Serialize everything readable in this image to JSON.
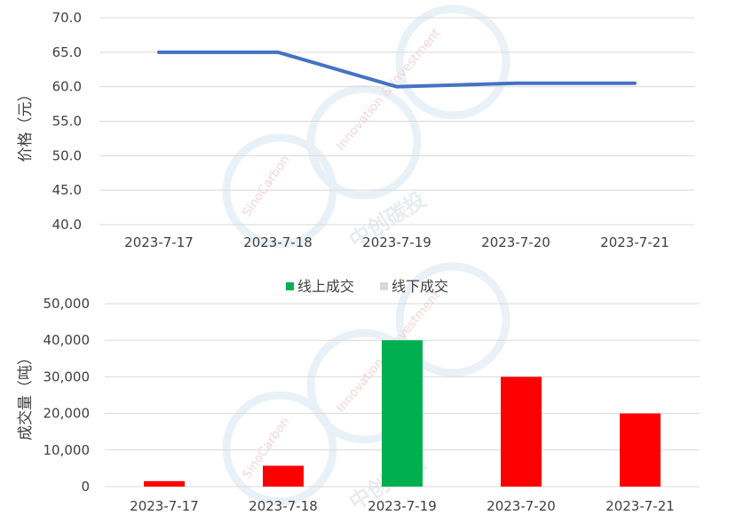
{
  "chart_data": [
    {
      "type": "line",
      "categories": [
        "2023-7-17",
        "2023-7-18",
        "2023-7-19",
        "2023-7-20",
        "2023-7-21"
      ],
      "values": [
        65.0,
        65.0,
        60.0,
        60.5,
        60.5
      ],
      "ylabel": "价格（元）",
      "ylim": [
        40,
        70
      ],
      "yticks": [
        "40.0",
        "45.0",
        "50.0",
        "55.0",
        "60.0",
        "65.0",
        "70.0"
      ],
      "grid": true,
      "color": "#4472C4"
    },
    {
      "type": "bar",
      "categories": [
        "2023-7-17",
        "2023-7-18",
        "2023-7-19",
        "2023-7-20",
        "2023-7-21"
      ],
      "values": [
        1500,
        5700,
        40000,
        30000,
        20000
      ],
      "bar_colors": [
        "#FF0000",
        "#FF0000",
        "#00B050",
        "#FF0000",
        "#FF0000"
      ],
      "ylabel": "成交量（吨）",
      "ylim": [
        0,
        50000
      ],
      "yticks": [
        "0",
        "10,000",
        "20,000",
        "30,000",
        "40,000",
        "50,000"
      ],
      "grid": true,
      "legend_position": "top-center",
      "legend": [
        {
          "label": "线上成交",
          "color": "#00B050"
        },
        {
          "label": "线下成交",
          "color": "#D9D9D9"
        }
      ]
    }
  ],
  "watermark": {
    "en": "SinoCarbon",
    "en2": "Innovation & Investment",
    "cn": "中创碳投"
  }
}
